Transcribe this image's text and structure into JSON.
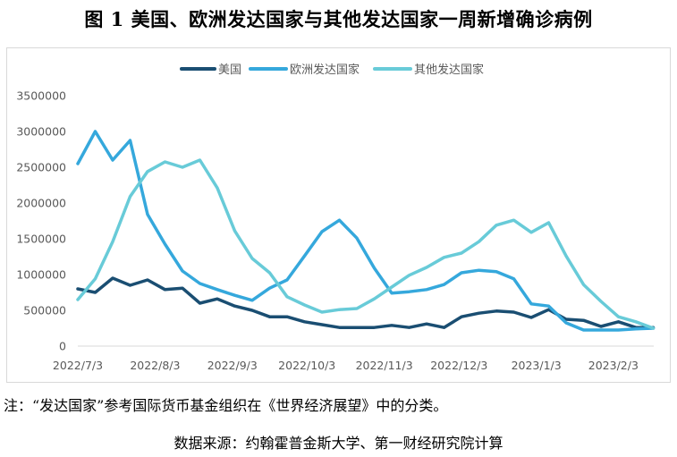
{
  "title": "图 1  美国、欧洲发达国家与其他发达国家一周新增确诊病例",
  "note": "注：“发达国家”参考国际货币基金组织在《世界经济展望》中的分类。",
  "source": "数据来源：约翰霍普金斯大学、第一财经研究院计算",
  "chart_data": {
    "type": "line",
    "title": "图 1 美国、欧洲发达国家与其他发达国家一周新增确诊病例",
    "xlabel": "",
    "ylabel": "",
    "ylim": [
      0,
      3500000
    ],
    "yticks": [
      0,
      500000,
      1000000,
      1500000,
      2000000,
      2500000,
      3000000,
      3500000
    ],
    "ytick_labels": [
      "0",
      "500000",
      "1000000",
      "1500000",
      "2000000",
      "2500000",
      "3000000",
      "3500000"
    ],
    "xtick_labels": [
      "2022/7/3",
      "2022/8/3",
      "2022/9/3",
      "2022/10/3",
      "2022/11/3",
      "2022/12/3",
      "2023/1/3",
      "2023/2/3"
    ],
    "xtick_index": [
      0,
      4.43,
      8.86,
      13.14,
      17.57,
      21.86,
      26.29,
      30.71
    ],
    "grid": false,
    "legend_position": "top",
    "x": [
      "2022/7/3",
      "2022/7/10",
      "2022/7/17",
      "2022/7/24",
      "2022/7/31",
      "2022/8/7",
      "2022/8/14",
      "2022/8/21",
      "2022/8/28",
      "2022/9/4",
      "2022/9/11",
      "2022/9/18",
      "2022/9/25",
      "2022/10/2",
      "2022/10/9",
      "2022/10/16",
      "2022/10/23",
      "2022/10/30",
      "2022/11/6",
      "2022/11/13",
      "2022/11/20",
      "2022/11/27",
      "2022/12/4",
      "2022/12/11",
      "2022/12/18",
      "2022/12/25",
      "2023/1/1",
      "2023/1/8",
      "2023/1/15",
      "2023/1/22",
      "2023/1/29",
      "2023/2/5",
      "2023/2/12",
      "2023/2/19"
    ],
    "series": [
      {
        "name": "美国",
        "color": "#1a4e72",
        "values": [
          800000,
          750000,
          950000,
          850000,
          925000,
          790000,
          810000,
          600000,
          660000,
          560000,
          500000,
          410000,
          410000,
          340000,
          300000,
          260000,
          260000,
          260000,
          290000,
          260000,
          310000,
          260000,
          410000,
          460000,
          490000,
          475000,
          400000,
          510000,
          375000,
          360000,
          275000,
          340000,
          260000,
          260000
        ]
      },
      {
        "name": "欧洲发达国家",
        "color": "#35a8dc",
        "values": [
          2550000,
          3000000,
          2600000,
          2875000,
          1840000,
          1425000,
          1050000,
          875000,
          790000,
          710000,
          640000,
          810000,
          925000,
          1260000,
          1600000,
          1760000,
          1510000,
          1090000,
          740000,
          760000,
          790000,
          860000,
          1025000,
          1060000,
          1040000,
          940000,
          590000,
          560000,
          325000,
          225000,
          225000,
          225000,
          240000,
          250000
        ]
      },
      {
        "name": "其他发达国家",
        "color": "#68cbd8",
        "values": [
          650000,
          940000,
          1460000,
          2090000,
          2440000,
          2575000,
          2500000,
          2600000,
          2210000,
          1610000,
          1225000,
          1025000,
          690000,
          575000,
          475000,
          510000,
          525000,
          660000,
          825000,
          990000,
          1100000,
          1240000,
          1300000,
          1460000,
          1690000,
          1760000,
          1590000,
          1725000,
          1260000,
          860000,
          625000,
          410000,
          340000,
          250000
        ]
      }
    ]
  }
}
